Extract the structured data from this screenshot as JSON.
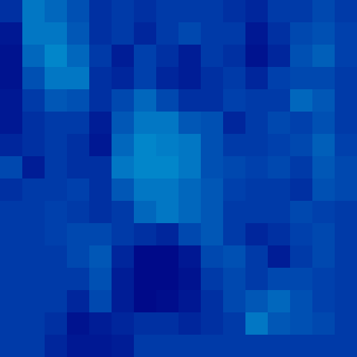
{
  "chart_data": {
    "type": "heatmap",
    "tick_labels": false,
    "color": "Jet",
    "zlim": [
      0,
      1
    ],
    "cells": [
      [
        0.1,
        0.2,
        0.18,
        0.15,
        0.1,
        0.12,
        0.1,
        0.12,
        0.12,
        0.12,
        0.1,
        0.08,
        0.12,
        0.12,
        0.14,
        0.12
      ],
      [
        0.05,
        0.2,
        0.2,
        0.16,
        0.1,
        0.12,
        0.08,
        0.12,
        0.14,
        0.12,
        0.12,
        0.05,
        0.1,
        0.14,
        0.15,
        0.13
      ],
      [
        0.04,
        0.18,
        0.22,
        0.18,
        0.12,
        0.06,
        0.13,
        0.1,
        0.06,
        0.12,
        0.1,
        0.04,
        0.08,
        0.15,
        0.17,
        0.13
      ],
      [
        0.04,
        0.15,
        0.2,
        0.2,
        0.1,
        0.08,
        0.13,
        0.08,
        0.06,
        0.1,
        0.12,
        0.08,
        0.13,
        0.14,
        0.14,
        0.12
      ],
      [
        0.05,
        0.12,
        0.16,
        0.15,
        0.1,
        0.14,
        0.18,
        0.14,
        0.1,
        0.1,
        0.13,
        0.12,
        0.12,
        0.18,
        0.16,
        0.12
      ],
      [
        0.05,
        0.1,
        0.12,
        0.12,
        0.06,
        0.16,
        0.2,
        0.2,
        0.16,
        0.15,
        0.08,
        0.12,
        0.14,
        0.13,
        0.15,
        0.12
      ],
      [
        0.08,
        0.1,
        0.12,
        0.1,
        0.05,
        0.18,
        0.22,
        0.21,
        0.2,
        0.15,
        0.12,
        0.12,
        0.13,
        0.14,
        0.17,
        0.13
      ],
      [
        0.14,
        0.06,
        0.12,
        0.1,
        0.1,
        0.2,
        0.22,
        0.22,
        0.2,
        0.15,
        0.14,
        0.13,
        0.14,
        0.12,
        0.16,
        0.14
      ],
      [
        0.1,
        0.12,
        0.12,
        0.13,
        0.1,
        0.16,
        0.2,
        0.2,
        0.18,
        0.16,
        0.13,
        0.12,
        0.12,
        0.1,
        0.15,
        0.14
      ],
      [
        0.12,
        0.12,
        0.13,
        0.12,
        0.1,
        0.12,
        0.18,
        0.2,
        0.18,
        0.16,
        0.12,
        0.12,
        0.12,
        0.14,
        0.13,
        0.12
      ],
      [
        0.12,
        0.12,
        0.13,
        0.14,
        0.14,
        0.12,
        0.1,
        0.08,
        0.14,
        0.16,
        0.12,
        0.08,
        0.1,
        0.13,
        0.14,
        0.12
      ],
      [
        0.12,
        0.12,
        0.12,
        0.14,
        0.16,
        0.08,
        0.02,
        0.02,
        0.05,
        0.14,
        0.15,
        0.12,
        0.06,
        0.12,
        0.14,
        0.12
      ],
      [
        0.12,
        0.12,
        0.12,
        0.12,
        0.15,
        0.06,
        0.02,
        0.02,
        0.04,
        0.12,
        0.14,
        0.12,
        0.14,
        0.14,
        0.13,
        0.12
      ],
      [
        0.12,
        0.12,
        0.12,
        0.08,
        0.14,
        0.06,
        0.02,
        0.03,
        0.05,
        0.1,
        0.14,
        0.16,
        0.18,
        0.15,
        0.13,
        0.12
      ],
      [
        0.12,
        0.12,
        0.1,
        0.04,
        0.06,
        0.08,
        0.1,
        0.1,
        0.08,
        0.1,
        0.12,
        0.2,
        0.16,
        0.15,
        0.14,
        0.12
      ],
      [
        0.12,
        0.12,
        0.08,
        0.05,
        0.05,
        0.06,
        0.12,
        0.12,
        0.12,
        0.12,
        0.12,
        0.12,
        0.12,
        0.12,
        0.12,
        0.12
      ]
    ]
  }
}
